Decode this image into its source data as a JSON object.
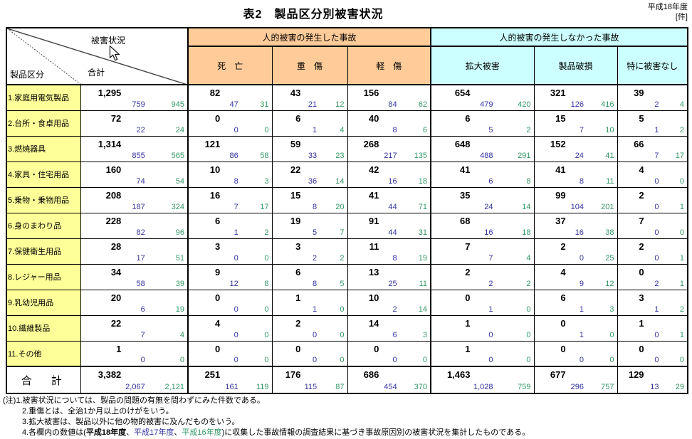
{
  "page": {
    "title": "表2　製品区分別被害状況",
    "fiscal_year": "平成18年度",
    "unit": "[件]"
  },
  "colors": {
    "row_header_bg": "#FFFF99",
    "injury_group_bg": "#FFCC99",
    "no_injury_group_bg": "#CCFFFF",
    "h17_value_color": "#3333A0",
    "h16_value_color": "#339966"
  },
  "table": {
    "corner": {
      "top_label": "被害状況",
      "mid_label": "合計",
      "bottom_label": "製品区分"
    },
    "groups": [
      {
        "label": "人的被害の発生した事故"
      },
      {
        "label": "人的被害の発生しなかった事故"
      }
    ],
    "columns": [
      "死　亡",
      "重　傷",
      "軽　傷",
      "拡大被害",
      "製品破損",
      "特に被害なし"
    ],
    "rows": [
      {
        "name": "1.家庭用電気製品",
        "cells": [
          [
            "1,295",
            "759",
            "945"
          ],
          [
            "82",
            "47",
            "31"
          ],
          [
            "43",
            "21",
            "12"
          ],
          [
            "156",
            "84",
            "62"
          ],
          [
            "654",
            "479",
            "420"
          ],
          [
            "321",
            "126",
            "416"
          ],
          [
            "39",
            "2",
            "4"
          ]
        ]
      },
      {
        "name": "2.台所・食卓用品",
        "cells": [
          [
            "72",
            "22",
            "24"
          ],
          [
            "0",
            "0",
            "0"
          ],
          [
            "6",
            "1",
            "4"
          ],
          [
            "40",
            "8",
            "6"
          ],
          [
            "6",
            "5",
            "2"
          ],
          [
            "15",
            "7",
            "10"
          ],
          [
            "5",
            "1",
            "2"
          ]
        ]
      },
      {
        "name": "3.燃焼器具",
        "cells": [
          [
            "1,314",
            "855",
            "565"
          ],
          [
            "121",
            "86",
            "58"
          ],
          [
            "59",
            "33",
            "23"
          ],
          [
            "268",
            "217",
            "135"
          ],
          [
            "648",
            "488",
            "291"
          ],
          [
            "152",
            "24",
            "41"
          ],
          [
            "66",
            "7",
            "17"
          ]
        ]
      },
      {
        "name": "4.家具・住宅用品",
        "cells": [
          [
            "160",
            "74",
            "54"
          ],
          [
            "10",
            "8",
            "3"
          ],
          [
            "22",
            "36",
            "14"
          ],
          [
            "42",
            "16",
            "18"
          ],
          [
            "41",
            "6",
            "8"
          ],
          [
            "41",
            "8",
            "11"
          ],
          [
            "4",
            "0",
            "0"
          ]
        ]
      },
      {
        "name": "5.乗物・乗物用品",
        "cells": [
          [
            "208",
            "187",
            "324"
          ],
          [
            "16",
            "7",
            "17"
          ],
          [
            "15",
            "8",
            "20"
          ],
          [
            "41",
            "44",
            "71"
          ],
          [
            "35",
            "24",
            "14"
          ],
          [
            "99",
            "104",
            "201"
          ],
          [
            "2",
            "0",
            "1"
          ]
        ]
      },
      {
        "name": "6.身のまわり品",
        "cells": [
          [
            "228",
            "82",
            "96"
          ],
          [
            "6",
            "1",
            "2"
          ],
          [
            "19",
            "5",
            "7"
          ],
          [
            "91",
            "44",
            "31"
          ],
          [
            "68",
            "16",
            "18"
          ],
          [
            "37",
            "16",
            "38"
          ],
          [
            "7",
            "0",
            "0"
          ]
        ]
      },
      {
        "name": "7.保健衛生用品",
        "cells": [
          [
            "28",
            "17",
            "51"
          ],
          [
            "3",
            "0",
            "0"
          ],
          [
            "3",
            "2",
            "2"
          ],
          [
            "11",
            "8",
            "19"
          ],
          [
            "7",
            "7",
            "4"
          ],
          [
            "2",
            "0",
            "25"
          ],
          [
            "2",
            "0",
            "1"
          ]
        ]
      },
      {
        "name": "8.レジャー用品",
        "cells": [
          [
            "34",
            "58",
            "39"
          ],
          [
            "9",
            "12",
            "8"
          ],
          [
            "6",
            "8",
            "5"
          ],
          [
            "13",
            "25",
            "11"
          ],
          [
            "2",
            "2",
            "2"
          ],
          [
            "4",
            "9",
            "12"
          ],
          [
            "0",
            "2",
            "1"
          ]
        ]
      },
      {
        "name": "9.乳幼児用品",
        "cells": [
          [
            "20",
            "6",
            "19"
          ],
          [
            "0",
            "0",
            "0"
          ],
          [
            "1",
            "1",
            "0"
          ],
          [
            "10",
            "2",
            "14"
          ],
          [
            "0",
            "1",
            "0"
          ],
          [
            "6",
            "1",
            "3"
          ],
          [
            "3",
            "1",
            "2"
          ]
        ]
      },
      {
        "name": "10.繊維製品",
        "cells": [
          [
            "22",
            "7",
            "4"
          ],
          [
            "4",
            "0",
            "0"
          ],
          [
            "2",
            "0",
            "0"
          ],
          [
            "14",
            "6",
            "3"
          ],
          [
            "1",
            "0",
            "0"
          ],
          [
            "0",
            "1",
            "0"
          ],
          [
            "1",
            "0",
            "1"
          ]
        ]
      },
      {
        "name": "11.その他",
        "cells": [
          [
            "1",
            "0",
            "0"
          ],
          [
            "0",
            "0",
            "0"
          ],
          [
            "0",
            "0",
            "0"
          ],
          [
            "0",
            "0",
            "0"
          ],
          [
            "1",
            "0",
            "0"
          ],
          [
            "0",
            "0",
            "0"
          ],
          [
            "0",
            "0",
            "0"
          ]
        ]
      }
    ],
    "total_row": {
      "name": "合　計",
      "cells": [
        [
          "3,382",
          "2,067",
          "2,121"
        ],
        [
          "251",
          "161",
          "119"
        ],
        [
          "176",
          "115",
          "87"
        ],
        [
          "686",
          "454",
          "370"
        ],
        [
          "1,463",
          "1,028",
          "759"
        ],
        [
          "677",
          "296",
          "757"
        ],
        [
          "129",
          "13",
          "29"
        ]
      ]
    }
  },
  "notes": {
    "line1": "(注)1.被害状況については、製品の問題の有無を問わずにみた件数である。",
    "line2": "2.重傷とは、全治1か月以上のけがをいう。",
    "line3": "3.拡大被害は、製品以外に他の物的被害に及んだものをいう。",
    "line4": {
      "prefix": "4.各欄内の数値は(",
      "y18": "平成18年度",
      "sep1": "、",
      "y17": "平成17年度",
      "sep2": "、",
      "y16": "平成16年度",
      "suffix": ")に収集した事故情報の調査結果に基づき事故原因別の被害状況を集計したものである。"
    }
  }
}
